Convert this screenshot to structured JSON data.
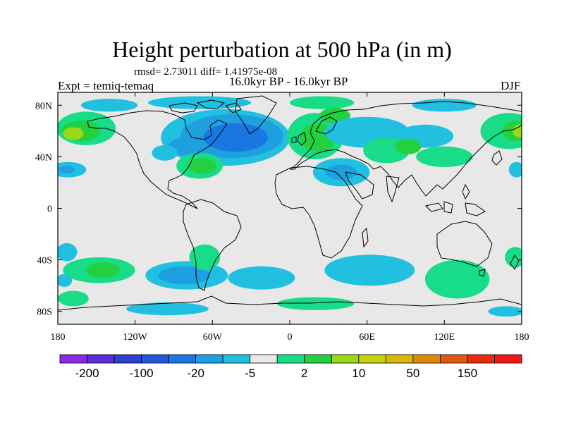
{
  "chart_data": {
    "type": "heatmap",
    "title": "Height perturbation at 500 hPa (in m)",
    "stats_line": "rmsd= 2.73011 diff= 1.41975e-08",
    "subtitle": "16.0kyr BP - 16.0kyr BP",
    "left_label": "Expt = temiq-temaq",
    "right_label": "DJF",
    "xlim": [
      -180,
      180
    ],
    "ylim": [
      -90,
      90
    ],
    "x_ticks": [
      {
        "value": -180,
        "label": "180"
      },
      {
        "value": -120,
        "label": "120W"
      },
      {
        "value": -60,
        "label": "60W"
      },
      {
        "value": 0,
        "label": "0"
      },
      {
        "value": 60,
        "label": "60E"
      },
      {
        "value": 120,
        "label": "120E"
      },
      {
        "value": 180,
        "label": "180"
      }
    ],
    "y_ticks": [
      {
        "value": 80,
        "label": "80N"
      },
      {
        "value": 40,
        "label": "40N"
      },
      {
        "value": 0,
        "label": "0"
      },
      {
        "value": -40,
        "label": "40S"
      },
      {
        "value": -80,
        "label": "80S"
      }
    ],
    "background_color": "#e8e8e8",
    "colorbar": {
      "colors": [
        "#8a2be2",
        "#5b2ddd",
        "#3040d0",
        "#2058d8",
        "#1878e0",
        "#1ea0e0",
        "#22c0e0",
        "#e8e8e8",
        "#18dc88",
        "#22d040",
        "#98d818",
        "#c8d010",
        "#d8b808",
        "#e08a08",
        "#e05a10",
        "#e82a10",
        "#f01818"
      ],
      "labels": [
        {
          "text": "-200",
          "boundary": 1
        },
        {
          "text": "-100",
          "boundary": 3
        },
        {
          "text": "-20",
          "boundary": 5
        },
        {
          "text": "-5",
          "boundary": 7
        },
        {
          "text": "2",
          "boundary": 9
        },
        {
          "text": "10",
          "boundary": 11
        },
        {
          "text": "50",
          "boundary": 13
        },
        {
          "text": "150",
          "boundary": 15
        }
      ]
    },
    "regions": [
      {
        "lon": -140,
        "lat": 80,
        "rx": 22,
        "ry": 5,
        "color": "#22c0e0"
      },
      {
        "lon": -70,
        "lat": 82,
        "rx": 40,
        "ry": 5,
        "color": "#22c0e0"
      },
      {
        "lon": 25,
        "lat": 82,
        "rx": 25,
        "ry": 5,
        "color": "#18dc88"
      },
      {
        "lon": 120,
        "lat": 80,
        "rx": 25,
        "ry": 5,
        "color": "#22c0e0"
      },
      {
        "lon": -158,
        "lat": 62,
        "rx": 23,
        "ry": 13,
        "color": "#18dc88"
      },
      {
        "lon": -162,
        "lat": 60,
        "rx": 15,
        "ry": 8,
        "color": "#22d040"
      },
      {
        "lon": -168,
        "lat": 58,
        "rx": 8,
        "ry": 5,
        "color": "#98d818"
      },
      {
        "lon": -50,
        "lat": 55,
        "rx": 50,
        "ry": 22,
        "color": "#22c0e0"
      },
      {
        "lon": -45,
        "lat": 56,
        "rx": 40,
        "ry": 17,
        "color": "#1ea0e0"
      },
      {
        "lon": -42,
        "lat": 55,
        "rx": 25,
        "ry": 11,
        "color": "#1878e0"
      },
      {
        "lon": -82,
        "lat": 48,
        "rx": 12,
        "ry": 7,
        "color": "#1ea0e0"
      },
      {
        "lon": -97,
        "lat": 43,
        "rx": 10,
        "ry": 6,
        "color": "#22c0e0"
      },
      {
        "lon": -70,
        "lat": 33,
        "rx": 18,
        "ry": 10,
        "color": "#18dc88"
      },
      {
        "lon": -68,
        "lat": 33,
        "rx": 11,
        "ry": 6,
        "color": "#22d040"
      },
      {
        "lon": 20,
        "lat": 56,
        "rx": 22,
        "ry": 18,
        "color": "#18dc88"
      },
      {
        "lon": 22,
        "lat": 55,
        "rx": 14,
        "ry": 11,
        "color": "#22d040"
      },
      {
        "lon": 35,
        "lat": 72,
        "rx": 12,
        "ry": 6,
        "color": "#22d040"
      },
      {
        "lon": 60,
        "lat": 59,
        "rx": 33,
        "ry": 12,
        "color": "#22c0e0"
      },
      {
        "lon": 105,
        "lat": 56,
        "rx": 22,
        "ry": 9,
        "color": "#22c0e0"
      },
      {
        "lon": 170,
        "lat": 60,
        "rx": 22,
        "ry": 14,
        "color": "#18dc88"
      },
      {
        "lon": 175,
        "lat": 60,
        "rx": 10,
        "ry": 8,
        "color": "#22d040"
      },
      {
        "lon": 178,
        "lat": 60,
        "rx": 5,
        "ry": 5,
        "color": "#98d818"
      },
      {
        "lon": 75,
        "lat": 45,
        "rx": 18,
        "ry": 10,
        "color": "#18dc88"
      },
      {
        "lon": 92,
        "lat": 48,
        "rx": 10,
        "ry": 6,
        "color": "#22d040"
      },
      {
        "lon": 120,
        "lat": 40,
        "rx": 22,
        "ry": 8,
        "color": "#18dc88"
      },
      {
        "lon": 40,
        "lat": 28,
        "rx": 22,
        "ry": 11,
        "color": "#22c0e0"
      },
      {
        "lon": 40,
        "lat": 28,
        "rx": 12,
        "ry": 6,
        "color": "#1ea0e0"
      },
      {
        "lon": -172,
        "lat": 30,
        "rx": 14,
        "ry": 6,
        "color": "#22c0e0"
      },
      {
        "lon": -173,
        "lat": 30,
        "rx": 6,
        "ry": 3,
        "color": "#1ea0e0"
      },
      {
        "lon": 176,
        "lat": 30,
        "rx": 6,
        "ry": 6,
        "color": "#22c0e0"
      },
      {
        "lon": -173,
        "lat": -34,
        "rx": 8,
        "ry": 7,
        "color": "#22c0e0"
      },
      {
        "lon": -148,
        "lat": -48,
        "rx": 28,
        "ry": 10,
        "color": "#18dc88"
      },
      {
        "lon": -145,
        "lat": -48,
        "rx": 13,
        "ry": 6,
        "color": "#22d040"
      },
      {
        "lon": -168,
        "lat": -70,
        "rx": 12,
        "ry": 6,
        "color": "#18dc88"
      },
      {
        "lon": -175,
        "lat": -56,
        "rx": 6,
        "ry": 5,
        "color": "#22c0e0"
      },
      {
        "lon": -80,
        "lat": -52,
        "rx": 32,
        "ry": 11,
        "color": "#22c0e0"
      },
      {
        "lon": -82,
        "lat": -52,
        "rx": 20,
        "ry": 7,
        "color": "#1ea0e0"
      },
      {
        "lon": -66,
        "lat": -38,
        "rx": 12,
        "ry": 10,
        "color": "#18dc88"
      },
      {
        "lon": -22,
        "lat": -54,
        "rx": 26,
        "ry": 9,
        "color": "#22c0e0"
      },
      {
        "lon": -95,
        "lat": -78,
        "rx": 32,
        "ry": 5,
        "color": "#22c0e0"
      },
      {
        "lon": 20,
        "lat": -74,
        "rx": 30,
        "ry": 5,
        "color": "#18dc88"
      },
      {
        "lon": 62,
        "lat": -48,
        "rx": 35,
        "ry": 12,
        "color": "#22c0e0"
      },
      {
        "lon": 130,
        "lat": -55,
        "rx": 25,
        "ry": 15,
        "color": "#18dc88"
      },
      {
        "lon": 175,
        "lat": -38,
        "rx": 8,
        "ry": 8,
        "color": "#18dc88"
      },
      {
        "lon": 168,
        "lat": -80,
        "rx": 14,
        "ry": 4,
        "color": "#22c0e0"
      }
    ]
  }
}
